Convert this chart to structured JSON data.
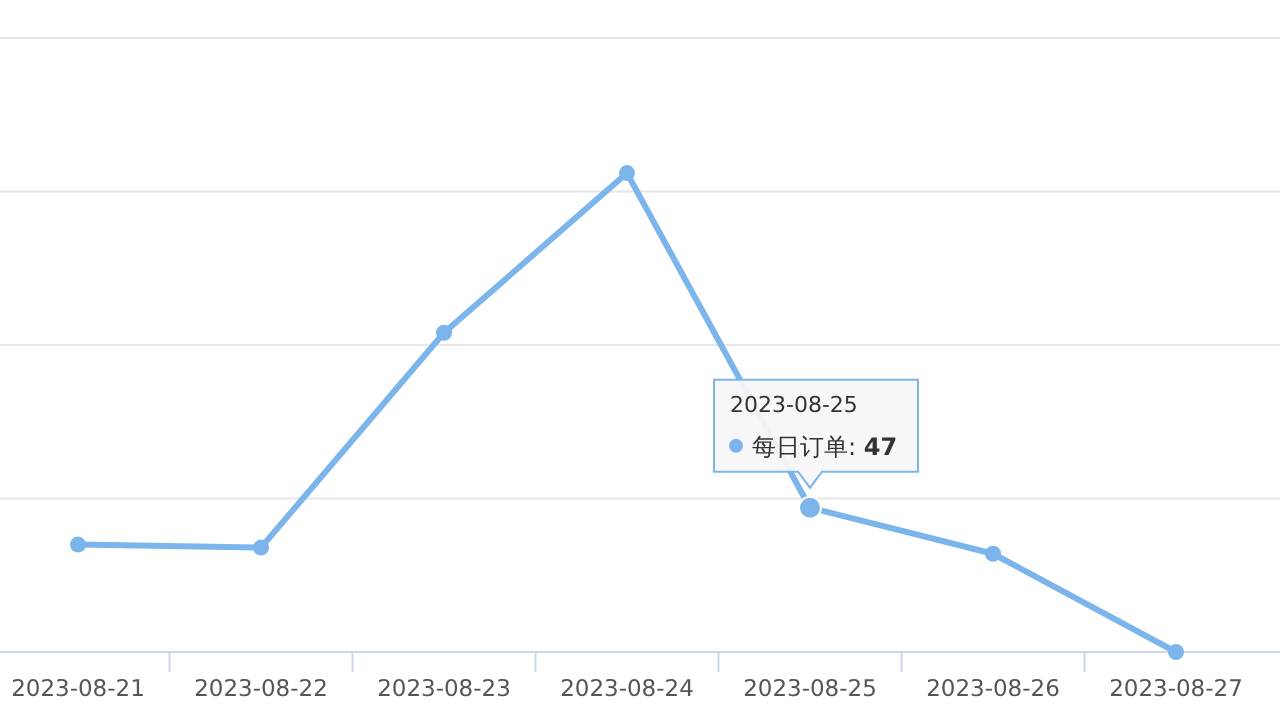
{
  "chart_data": {
    "type": "line",
    "categories": [
      "2023-08-21",
      "2023-08-22",
      "2023-08-23",
      "2023-08-24",
      "2023-08-25",
      "2023-08-26",
      "2023-08-27"
    ],
    "series": [
      {
        "name": "每日订单:",
        "color": "#7cb5ec",
        "values": [
          35,
          34,
          104,
          156,
          47,
          32,
          0
        ],
        "value_labels": [
          null,
          null,
          null,
          null,
          "47",
          null,
          null
        ]
      }
    ],
    "ylim": [
      0,
      200
    ],
    "yticks": [
      {
        "value": 0,
        "label": null
      },
      {
        "value": 50,
        "label": null
      },
      {
        "value": 100,
        "label": null
      },
      {
        "value": 150,
        "label": null
      },
      {
        "value": 200,
        "label": null
      }
    ],
    "tick_labels": "x",
    "grid": "y",
    "marker": "circle",
    "line_style": "solid",
    "annotations": [
      "2023-08-25"
    ]
  }
}
